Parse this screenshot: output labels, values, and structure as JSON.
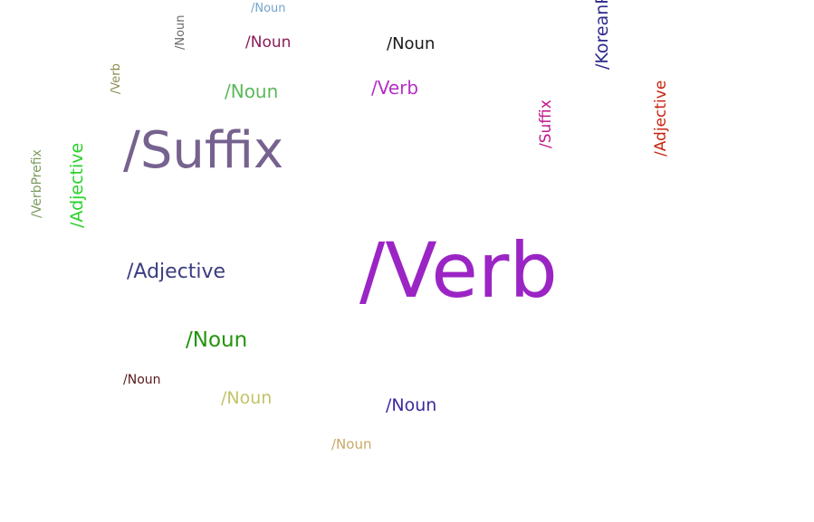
{
  "words": [
    {
      "text": "/Verb",
      "color": "#9b25c4"
    },
    {
      "text": "/Suffix",
      "color": "#76628f"
    },
    {
      "text": "/Adjective",
      "color": "#3a3d80"
    },
    {
      "text": "/Noun",
      "color": "#23940e"
    },
    {
      "text": "/Noun",
      "color": "#5cb85a"
    },
    {
      "text": "/Verb",
      "color": "#b52ec5"
    },
    {
      "text": "/Noun",
      "color": "#1a1a1a"
    },
    {
      "text": "/Noun",
      "color": "#8a1d5a"
    },
    {
      "text": "/Noun",
      "color": "#3b2aa0"
    },
    {
      "text": "/Noun",
      "color": "#c3c36a"
    },
    {
      "text": "/Noun",
      "color": "#c9a968"
    },
    {
      "text": "/Noun",
      "color": "#5a1a1a"
    },
    {
      "text": "/Noun",
      "color": "#72a6cc"
    },
    {
      "text": "/Adjective",
      "color": "#2bd12b"
    },
    {
      "text": "/VerbPrefix",
      "color": "#7a9c5e"
    },
    {
      "text": "/Verb",
      "color": "#8a8c4e"
    },
    {
      "text": "/Noun",
      "color": "#6a6a6a"
    },
    {
      "text": "/Suffix",
      "color": "#c2168a"
    },
    {
      "text": "/Adjective",
      "color": "#c8240f"
    },
    {
      "text": "/KoreanParticle",
      "color": "#2e2a8c"
    }
  ]
}
